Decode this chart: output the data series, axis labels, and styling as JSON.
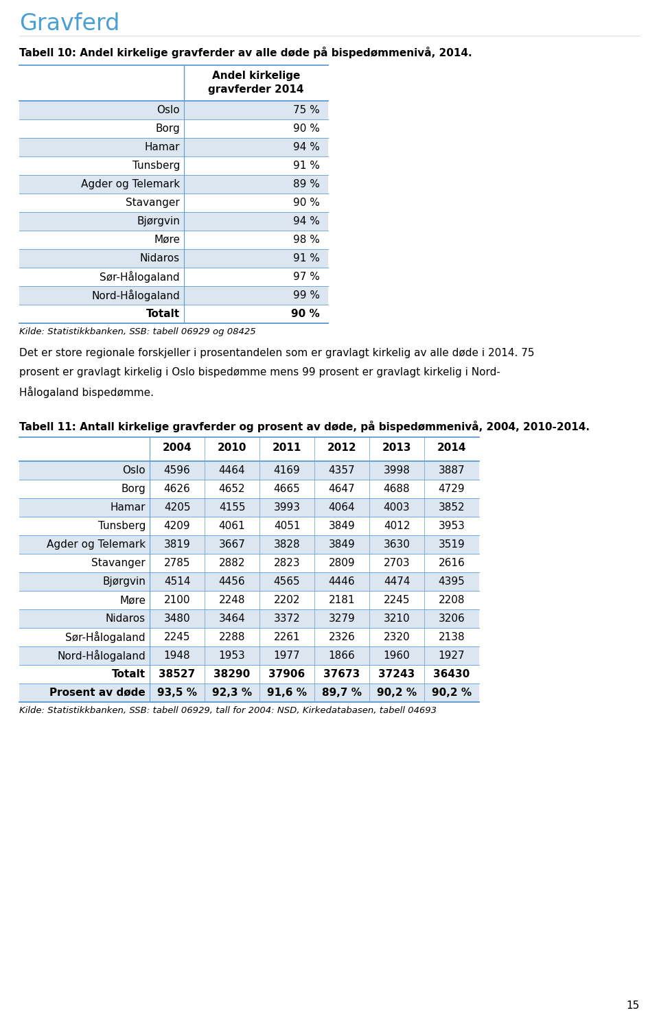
{
  "title": "Gravferd",
  "table10_title": "Tabell 10: Andel kirkelige gravferder av alle døde på bispedømmenivå, 2014.",
  "table10_col_header_line1": "Andel kirkelige",
  "table10_col_header_line2": "gravferder 2014",
  "table10_rows": [
    [
      "Oslo",
      "75 %"
    ],
    [
      "Borg",
      "90 %"
    ],
    [
      "Hamar",
      "94 %"
    ],
    [
      "Tunsberg",
      "91 %"
    ],
    [
      "Agder og Telemark",
      "89 %"
    ],
    [
      "Stavanger",
      "90 %"
    ],
    [
      "Bjørgvin",
      "94 %"
    ],
    [
      "Møre",
      "98 %"
    ],
    [
      "Nidaros",
      "91 %"
    ],
    [
      "Sør-Hålogaland",
      "97 %"
    ],
    [
      "Nord-Hålogaland",
      "99 %"
    ],
    [
      "Totalt",
      "90 %"
    ]
  ],
  "table10_bold_rows": [
    11
  ],
  "table10_source": "Kilde: Statistikkbanken, SSB: tabell 06929 og 08425",
  "paragraph_line1": "Det er store regionale forskjeller i prosentandelen som er gravlagt kirkelig av alle døde i 2014. 75",
  "paragraph_line2": "prosent er gravlagt kirkelig i Oslo bispedømme mens 99 prosent er gravlagt kirkelig i Nord-",
  "paragraph_line3": "Hålogaland bispedømme.",
  "table11_title": "Tabell 11: Antall kirkelige gravferder og prosent av døde, på bispedømmenivå, 2004, 2010-2014.",
  "table11_col_headers": [
    "",
    "2004",
    "2010",
    "2011",
    "2012",
    "2013",
    "2014"
  ],
  "table11_rows": [
    [
      "Oslo",
      "4596",
      "4464",
      "4169",
      "4357",
      "3998",
      "3887"
    ],
    [
      "Borg",
      "4626",
      "4652",
      "4665",
      "4647",
      "4688",
      "4729"
    ],
    [
      "Hamar",
      "4205",
      "4155",
      "3993",
      "4064",
      "4003",
      "3852"
    ],
    [
      "Tunsberg",
      "4209",
      "4061",
      "4051",
      "3849",
      "4012",
      "3953"
    ],
    [
      "Agder og Telemark",
      "3819",
      "3667",
      "3828",
      "3849",
      "3630",
      "3519"
    ],
    [
      "Stavanger",
      "2785",
      "2882",
      "2823",
      "2809",
      "2703",
      "2616"
    ],
    [
      "Bjørgvin",
      "4514",
      "4456",
      "4565",
      "4446",
      "4474",
      "4395"
    ],
    [
      "Møre",
      "2100",
      "2248",
      "2202",
      "2181",
      "2245",
      "2208"
    ],
    [
      "Nidaros",
      "3480",
      "3464",
      "3372",
      "3279",
      "3210",
      "3206"
    ],
    [
      "Sør-Hålogaland",
      "2245",
      "2288",
      "2261",
      "2326",
      "2320",
      "2138"
    ],
    [
      "Nord-Hålogaland",
      "1948",
      "1953",
      "1977",
      "1866",
      "1960",
      "1927"
    ],
    [
      "Totalt",
      "38527",
      "38290",
      "37906",
      "37673",
      "37243",
      "36430"
    ],
    [
      "Prosent av døde",
      "93,5 %",
      "92,3 %",
      "91,6 %",
      "89,7 %",
      "90,2 %",
      "90,2 %"
    ]
  ],
  "table11_bold_rows": [
    11,
    12
  ],
  "table11_source": "Kilde: Statistikkbanken, SSB: tabell 06929, tall for 2004: NSD, Kirkedatabasen, tabell 04693",
  "page_number": "15",
  "bg_color": "#ffffff",
  "title_color": "#4a9fd4",
  "table_row_alt_bg": "#dce6f1",
  "table_row_white_bg": "#ffffff",
  "table_border_color": "#5b9bd5",
  "text_color": "#000000"
}
